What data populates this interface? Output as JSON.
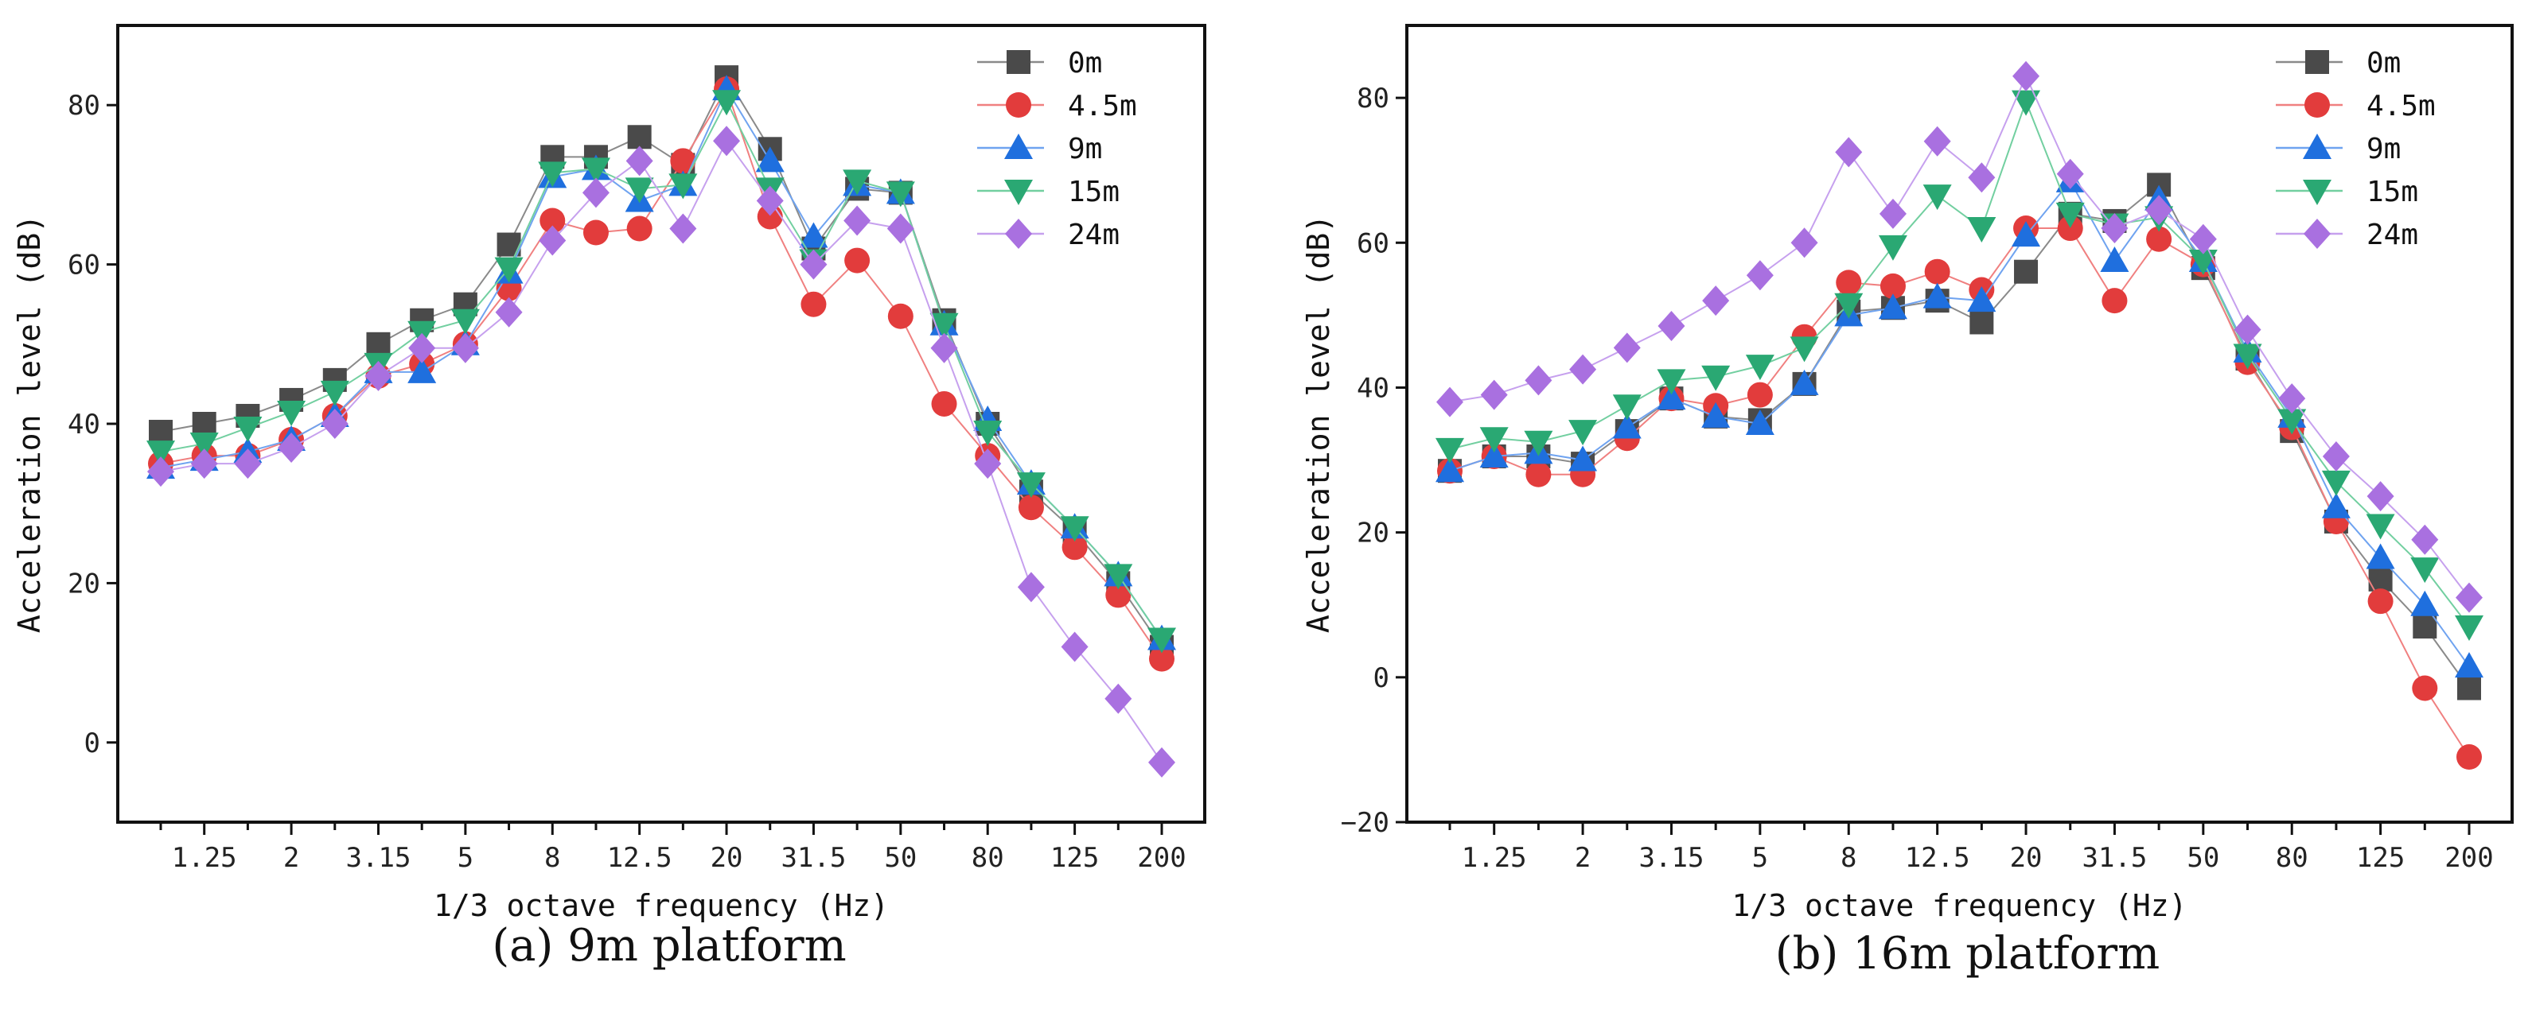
{
  "chart_data": [
    {
      "type": "line",
      "caption": "(a) 9m platform",
      "xlabel": "1/3 octave frequency (Hz)",
      "ylabel": "Acceleration level (dB)",
      "ylim": [
        -10,
        90
      ],
      "yticks": [
        0,
        20,
        40,
        60,
        80
      ],
      "x_band_count": 24,
      "x_tick_labels": [
        {
          "band": 1,
          "label": "1.25"
        },
        {
          "band": 3,
          "label": "2"
        },
        {
          "band": 5,
          "label": "3.15"
        },
        {
          "band": 7,
          "label": "5"
        },
        {
          "band": 9,
          "label": "8"
        },
        {
          "band": 11,
          "label": "12.5"
        },
        {
          "band": 13,
          "label": "20"
        },
        {
          "band": 15,
          "label": "31.5"
        },
        {
          "band": 17,
          "label": "50"
        },
        {
          "band": 19,
          "label": "80"
        },
        {
          "band": 21,
          "label": "125"
        },
        {
          "band": 23,
          "label": "200"
        }
      ],
      "legend_position": "top-right",
      "series": [
        {
          "name": "0m",
          "marker": "square",
          "color": "#4a4a4a",
          "line_color": "#8a8a8a",
          "values": [
            39,
            40,
            41,
            43,
            45.5,
            50,
            53,
            55,
            62.5,
            73.5,
            73.5,
            76,
            72.5,
            83.5,
            74.5,
            62,
            69.5,
            69,
            53,
            40,
            31.5,
            26.5,
            20,
            12
          ]
        },
        {
          "name": "4.5m",
          "marker": "circle",
          "color": "#e23c3c",
          "line_color": "#f08080",
          "values": [
            35,
            36,
            36,
            38,
            41,
            46,
            47.5,
            50,
            57,
            65.5,
            64,
            64.5,
            73,
            82,
            66,
            55,
            60.5,
            53.5,
            42.5,
            36,
            29.5,
            24.5,
            18.5,
            10.5
          ]
        },
        {
          "name": "9m",
          "marker": "triangle-up",
          "color": "#1f6fde",
          "line_color": "#6fa3f0",
          "values": [
            34.5,
            35.5,
            36.5,
            38,
            41,
            46.5,
            46.5,
            50,
            59,
            71,
            72,
            68,
            70,
            82,
            73,
            63.5,
            70,
            69,
            52.5,
            40.5,
            32.5,
            27,
            21,
            13
          ]
        },
        {
          "name": "15m",
          "marker": "triangle-down",
          "color": "#2aa873",
          "line_color": "#72cfa0",
          "values": [
            36.5,
            37.5,
            39.5,
            41.5,
            44,
            47.5,
            51.5,
            53,
            59.5,
            71.5,
            72,
            69.5,
            70,
            80.5,
            69.5,
            60.5,
            70.5,
            69,
            52.5,
            39,
            32.5,
            27,
            21,
            13
          ]
        },
        {
          "name": "24m",
          "marker": "diamond",
          "color": "#a970e0",
          "line_color": "#c6a0ee",
          "values": [
            34,
            35,
            35,
            37,
            40,
            46,
            49.5,
            49.5,
            54,
            63,
            69,
            73,
            64.5,
            75.5,
            68,
            60,
            65.5,
            64.5,
            49.5,
            35,
            19.5,
            12,
            5.5,
            -2.5
          ]
        }
      ]
    },
    {
      "type": "line",
      "caption": "(b) 16m platform",
      "xlabel": "1/3 octave frequency (Hz)",
      "ylabel": "Acceleration level (dB)",
      "ylim": [
        -20,
        90
      ],
      "yticks": [
        -20,
        0,
        20,
        40,
        60,
        80
      ],
      "x_band_count": 24,
      "x_tick_labels": [
        {
          "band": 1,
          "label": "1.25"
        },
        {
          "band": 3,
          "label": "2"
        },
        {
          "band": 5,
          "label": "3.15"
        },
        {
          "band": 7,
          "label": "5"
        },
        {
          "band": 9,
          "label": "8"
        },
        {
          "band": 11,
          "label": "12.5"
        },
        {
          "band": 13,
          "label": "20"
        },
        {
          "band": 15,
          "label": "31.5"
        },
        {
          "band": 17,
          "label": "50"
        },
        {
          "band": 19,
          "label": "80"
        },
        {
          "band": 21,
          "label": "125"
        },
        {
          "band": 23,
          "label": "200"
        }
      ],
      "legend_position": "top-right",
      "series": [
        {
          "name": "0m",
          "marker": "square",
          "color": "#4a4a4a",
          "line_color": "#8a8a8a",
          "values": [
            28.5,
            30.5,
            30.5,
            29.5,
            34,
            38.5,
            36,
            35.5,
            40.5,
            50.5,
            51,
            52,
            49,
            56,
            64,
            63,
            68,
            56.5,
            44,
            34,
            21.5,
            13.5,
            7,
            -1.5
          ]
        },
        {
          "name": "4.5m",
          "marker": "circle",
          "color": "#e23c3c",
          "line_color": "#f08080",
          "values": [
            28.5,
            30.5,
            28,
            28,
            33,
            38.5,
            37.5,
            39,
            47,
            54.5,
            54,
            56,
            53.5,
            62,
            62,
            52,
            60.5,
            57,
            43.5,
            34.5,
            21.5,
            10.5,
            -1.5,
            -11
          ]
        },
        {
          "name": "9m",
          "marker": "triangle-up",
          "color": "#1f6fde",
          "line_color": "#6fa3f0",
          "values": [
            28.5,
            30.5,
            31,
            30,
            34.5,
            38.5,
            36,
            35,
            40.5,
            50,
            51,
            52.5,
            52,
            61,
            68.5,
            57.5,
            66,
            57.5,
            45,
            36,
            23.5,
            16.5,
            10,
            1.5
          ]
        },
        {
          "name": "15m",
          "marker": "triangle-down",
          "color": "#2aa873",
          "line_color": "#72cfa0",
          "values": [
            31.5,
            33,
            32.5,
            34,
            37.5,
            41,
            41.5,
            43,
            45.5,
            51.5,
            59.5,
            66.5,
            62,
            79.5,
            64,
            62.5,
            63.5,
            57.5,
            44.5,
            35.5,
            27,
            21,
            15,
            7
          ]
        },
        {
          "name": "24m",
          "marker": "diamond",
          "color": "#a970e0",
          "line_color": "#c6a0ee",
          "values": [
            38,
            39,
            41,
            42.5,
            45.5,
            48.5,
            52,
            55.5,
            60,
            72.5,
            64,
            74,
            69,
            83,
            69.5,
            62,
            64.5,
            60.5,
            48,
            38.5,
            30.5,
            25,
            19,
            11
          ]
        }
      ]
    }
  ]
}
